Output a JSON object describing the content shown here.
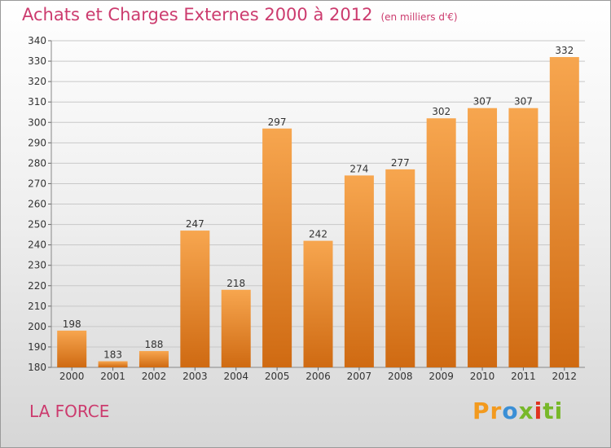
{
  "header": {
    "title": "Achats et Charges Externes 2000 à 2012",
    "subtitle": "(en milliers d'€)"
  },
  "footer": {
    "place": "LA FORCE",
    "logo": "Proxiti",
    "logo_parts": [
      "Pr",
      "o",
      "x",
      "i",
      "ti"
    ]
  },
  "colors": {
    "bar_top": "#f7a64f",
    "bar_bottom": "#cf6a12",
    "title": "#cc3b6e",
    "grid": "#c8c8c8"
  },
  "chart_data": {
    "type": "bar",
    "title": "Achats et Charges Externes 2000 à 2012",
    "subtitle": "(en milliers d'€)",
    "xlabel": "",
    "ylabel": "",
    "categories": [
      "2000",
      "2001",
      "2002",
      "2003",
      "2004",
      "2005",
      "2006",
      "2007",
      "2008",
      "2009",
      "2010",
      "2011",
      "2012"
    ],
    "values": [
      198,
      183,
      188,
      247,
      218,
      297,
      242,
      274,
      277,
      302,
      307,
      307,
      332
    ],
    "ylim": [
      180,
      340
    ],
    "yticks": [
      180,
      190,
      200,
      210,
      220,
      230,
      240,
      250,
      260,
      270,
      280,
      290,
      300,
      310,
      320,
      330,
      340
    ],
    "grid": true,
    "data_labels": true
  }
}
